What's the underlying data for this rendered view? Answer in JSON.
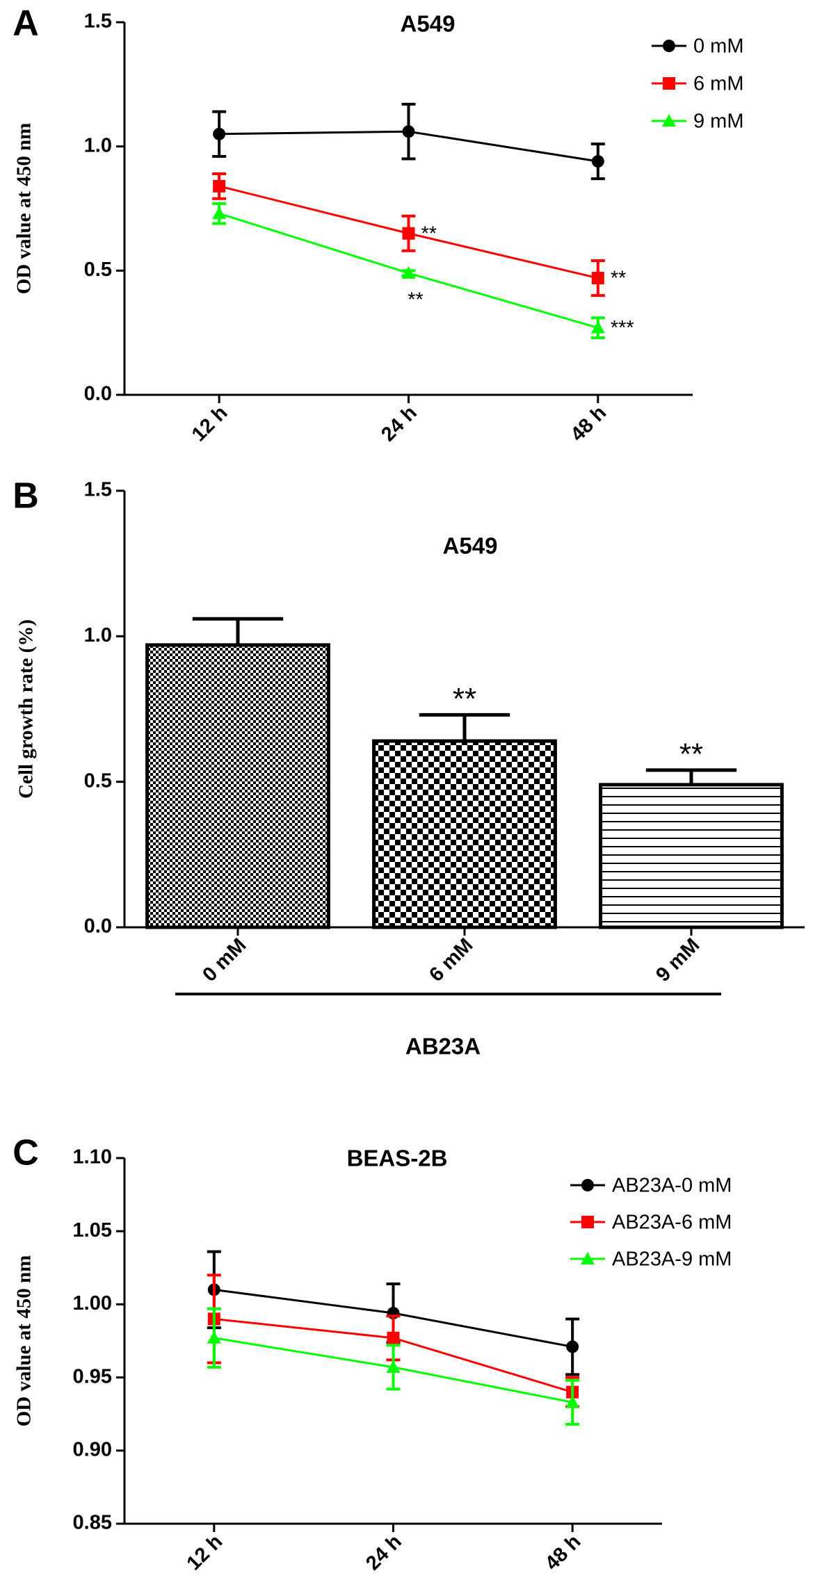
{
  "chart_data": [
    {
      "type": "line",
      "panel": "A",
      "title": "A549",
      "ylabel": "OD value at 450 nm",
      "categories": [
        "12 h",
        "24 h",
        "48 h"
      ],
      "ylim": [
        0,
        1.5
      ],
      "yticks": [
        {
          "value": 0,
          "label": "0.0"
        },
        0.5,
        {
          "value": 1,
          "label": "1.0"
        },
        1.5
      ],
      "series": [
        {
          "name": "0 mM",
          "color": "#000000",
          "values": [
            1.05,
            1.06,
            0.94
          ],
          "errors": [
            0.09,
            0.11,
            0.07
          ]
        },
        {
          "name": "6 mM",
          "color": "#ff0000",
          "values": [
            0.84,
            0.65,
            0.47
          ],
          "errors": [
            0.05,
            0.07,
            0.07
          ],
          "annotations": [
            null,
            "**",
            "**"
          ]
        },
        {
          "name": "9 mM",
          "color": "#00ff00",
          "values": [
            0.73,
            0.49,
            0.27
          ],
          "errors": [
            0.04,
            0.01,
            0.04
          ],
          "annotations": [
            null,
            "**",
            "***"
          ]
        }
      ]
    },
    {
      "type": "bar",
      "panel": "B",
      "title": "A549",
      "ylabel": "Cell growth rate (%)",
      "xlabel": "AB23A",
      "categories": [
        "0 mM",
        "6 mM",
        "9 mM"
      ],
      "values": [
        0.97,
        0.64,
        0.49
      ],
      "errors": [
        0.09,
        0.09,
        0.05
      ],
      "annotations": [
        null,
        "**",
        "**"
      ],
      "ylim": [
        0,
        1.5
      ],
      "yticks": [
        {
          "value": 0,
          "label": "0.0"
        },
        0.5,
        {
          "value": 1,
          "label": "1.0"
        },
        1.5
      ]
    },
    {
      "type": "line",
      "panel": "C",
      "title": "BEAS-2B",
      "ylabel": "OD value at 450 nm",
      "categories": [
        "12 h",
        "24 h",
        "48 h"
      ],
      "ylim": [
        0.85,
        1.1
      ],
      "yticks": [
        0.85,
        {
          "value": 0.9,
          "label": "0.90"
        },
        0.95,
        {
          "value": 1,
          "label": "1.00"
        },
        1.05,
        {
          "value": 1.1,
          "label": "1.10"
        }
      ],
      "series": [
        {
          "name": "AB23A-0 mM",
          "color": "#000000",
          "values": [
            1.01,
            0.994,
            0.971
          ],
          "errors": [
            0.026,
            0.02,
            0.019
          ]
        },
        {
          "name": "AB23A-6 mM",
          "color": "#ff0000",
          "values": [
            0.99,
            0.977,
            0.94
          ],
          "errors": [
            0.03,
            0.015,
            0.01
          ]
        },
        {
          "name": "AB23A-9 mM",
          "color": "#00ff00",
          "values": [
            0.977,
            0.957,
            0.933
          ],
          "errors": [
            0.02,
            0.015,
            0.015
          ]
        }
      ]
    }
  ]
}
